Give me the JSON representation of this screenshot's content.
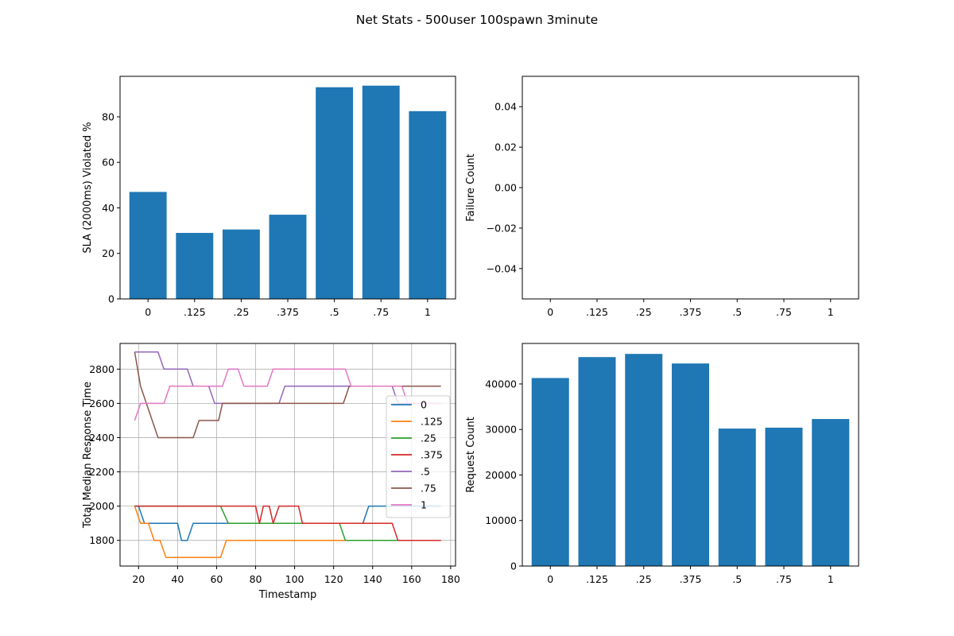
{
  "title": "Net Stats - 500user 100spawn 3minute",
  "colors": {
    "bar": "#1f77b4",
    "series": [
      "#1f77b4",
      "#ff7f0e",
      "#2ca02c",
      "#d62728",
      "#9467bd",
      "#8c564b",
      "#e377c2"
    ],
    "grid": "#b0b0b0",
    "axis": "#000000"
  },
  "chart_data": [
    {
      "type": "bar",
      "categories": [
        "0",
        ".125",
        ".25",
        ".375",
        ".5",
        ".75",
        "1"
      ],
      "values": [
        47,
        29,
        30.5,
        37,
        93,
        93.7,
        82.5
      ],
      "title": "",
      "xlabel": "",
      "ylabel": "SLA (2000ms) Violated %",
      "ylim": [
        0,
        97.8
      ],
      "yticks": [
        0,
        20,
        40,
        60,
        80
      ],
      "ytick_labels": [
        "0",
        "20",
        "40",
        "60",
        "80"
      ],
      "grid": false
    },
    {
      "type": "bar",
      "categories": [
        "0",
        ".125",
        ".25",
        ".375",
        ".5",
        ".75",
        "1"
      ],
      "values": [
        0,
        0,
        0,
        0,
        0,
        0,
        0
      ],
      "title": "",
      "xlabel": "",
      "ylabel": "Failure Count",
      "ylim": [
        -0.055,
        0.055
      ],
      "yticks": [
        -0.04,
        -0.02,
        0.0,
        0.02,
        0.04
      ],
      "ytick_labels": [
        "−0.04",
        "−0.02",
        "0.00",
        "0.02",
        "0.04"
      ],
      "grid": false
    },
    {
      "type": "line",
      "title": "",
      "xlabel": "Timestamp",
      "ylabel": "Total Median Response Time",
      "xlim": [
        10.5,
        182.5
      ],
      "ylim": [
        1650,
        2950
      ],
      "xticks": [
        20,
        40,
        60,
        80,
        100,
        120,
        140,
        160,
        180
      ],
      "xtick_labels": [
        "20",
        "40",
        "60",
        "80",
        "100",
        "120",
        "140",
        "160",
        "180"
      ],
      "yticks": [
        1800,
        2000,
        2200,
        2400,
        2600,
        2800
      ],
      "ytick_labels": [
        "1800",
        "2000",
        "2200",
        "2400",
        "2600",
        "2800"
      ],
      "grid": true,
      "legend": "right",
      "series": [
        {
          "name": "0",
          "points": [
            [
              18,
              2000
            ],
            [
              20,
              2000
            ],
            [
              23,
              1900
            ],
            [
              40,
              1900
            ],
            [
              42,
              1800
            ],
            [
              45,
              1800
            ],
            [
              48,
              1900
            ],
            [
              135,
              1900
            ],
            [
              138,
              2000
            ],
            [
              175,
              2000
            ]
          ]
        },
        {
          "name": ".125",
          "points": [
            [
              18,
              2000
            ],
            [
              21,
              1900
            ],
            [
              25,
              1900
            ],
            [
              28,
              1800
            ],
            [
              31,
              1800
            ],
            [
              34,
              1700
            ],
            [
              62,
              1700
            ],
            [
              65,
              1800
            ],
            [
              125,
              1800
            ],
            [
              175,
              1800
            ]
          ]
        },
        {
          "name": ".25",
          "points": [
            [
              18,
              2000
            ],
            [
              62,
              2000
            ],
            [
              66,
              1900
            ],
            [
              123,
              1900
            ],
            [
              126,
              1800
            ],
            [
              175,
              1800
            ]
          ]
        },
        {
          "name": ".375",
          "points": [
            [
              18,
              2000
            ],
            [
              80,
              2000
            ],
            [
              82,
              1900
            ],
            [
              84,
              2000
            ],
            [
              87,
              2000
            ],
            [
              89,
              1900
            ],
            [
              92,
              2000
            ],
            [
              102,
              2000
            ],
            [
              104,
              1900
            ],
            [
              150,
              1900
            ],
            [
              153,
              1800
            ],
            [
              175,
              1800
            ]
          ]
        },
        {
          "name": ".5",
          "points": [
            [
              18,
              2900
            ],
            [
              30,
              2900
            ],
            [
              33,
              2800
            ],
            [
              45,
              2800
            ],
            [
              48,
              2700
            ],
            [
              56,
              2700
            ],
            [
              59,
              2600
            ],
            [
              92,
              2600
            ],
            [
              95,
              2700
            ],
            [
              150,
              2700
            ],
            [
              153,
              2600
            ],
            [
              175,
              2600
            ]
          ]
        },
        {
          "name": ".75",
          "points": [
            [
              18,
              2900
            ],
            [
              21,
              2700
            ],
            [
              30,
              2400
            ],
            [
              48,
              2400
            ],
            [
              51,
              2500
            ],
            [
              61,
              2500
            ],
            [
              63,
              2600
            ],
            [
              125,
              2600
            ],
            [
              128,
              2700
            ],
            [
              175,
              2700
            ]
          ]
        },
        {
          "name": "1",
          "points": [
            [
              18,
              2500
            ],
            [
              21,
              2600
            ],
            [
              33,
              2600
            ],
            [
              36,
              2700
            ],
            [
              63,
              2700
            ],
            [
              66,
              2800
            ],
            [
              71,
              2800
            ],
            [
              74,
              2700
            ],
            [
              86,
              2700
            ],
            [
              89,
              2800
            ],
            [
              126,
              2800
            ],
            [
              129,
              2700
            ],
            [
              155,
              2700
            ],
            [
              158,
              2600
            ],
            [
              175,
              2600
            ]
          ]
        }
      ]
    },
    {
      "type": "bar",
      "categories": [
        "0",
        ".125",
        ".25",
        ".375",
        ".5",
        ".75",
        "1"
      ],
      "values": [
        41300,
        45900,
        46600,
        44500,
        30200,
        30400,
        32300
      ],
      "title": "",
      "xlabel": "",
      "ylabel": "Request Count",
      "ylim": [
        0,
        48900
      ],
      "yticks": [
        0,
        10000,
        20000,
        30000,
        40000
      ],
      "ytick_labels": [
        "0",
        "10000",
        "20000",
        "30000",
        "40000"
      ],
      "grid": false
    }
  ]
}
